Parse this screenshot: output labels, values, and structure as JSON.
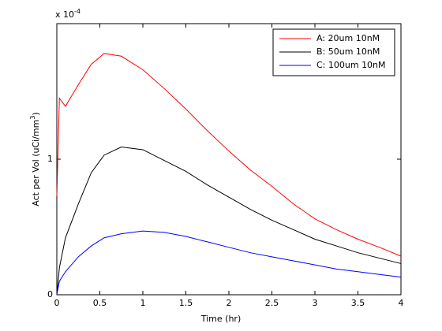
{
  "chart_data": {
    "type": "line",
    "xlabel": "Time (hr)",
    "ylabel": {
      "text": "Act per Vol (uCi/mm",
      "superscript": "3",
      "suffix": ")"
    },
    "y_multiplier": {
      "base": "x 10",
      "exponent": "-4"
    },
    "x": [
      0,
      0.03,
      0.1,
      0.25,
      0.4,
      0.55,
      0.75,
      1,
      1.25,
      1.5,
      1.75,
      2,
      2.25,
      2.5,
      2.75,
      3,
      3.25,
      3.5,
      3.75,
      4
    ],
    "series": [
      {
        "name": "A: 20um 10nM",
        "color": "#ff0000",
        "values": [
          0.73,
          1.45,
          1.39,
          1.55,
          1.7,
          1.78,
          1.76,
          1.66,
          1.52,
          1.37,
          1.21,
          1.06,
          0.92,
          0.8,
          0.67,
          0.56,
          0.48,
          0.41,
          0.35,
          0.285
        ]
      },
      {
        "name": "B: 50um 10nM",
        "color": "#000000",
        "values": [
          0,
          0.2,
          0.42,
          0.67,
          0.9,
          1.03,
          1.09,
          1.07,
          0.99,
          0.91,
          0.81,
          0.72,
          0.63,
          0.55,
          0.48,
          0.41,
          0.36,
          0.31,
          0.27,
          0.23
        ]
      },
      {
        "name": "C: 100um 10nM",
        "color": "#0000ff",
        "values": [
          0,
          0.1,
          0.17,
          0.28,
          0.36,
          0.42,
          0.45,
          0.47,
          0.46,
          0.43,
          0.39,
          0.35,
          0.31,
          0.28,
          0.25,
          0.22,
          0.19,
          0.17,
          0.15,
          0.13
        ]
      }
    ],
    "xlim": [
      0,
      4
    ],
    "xticks": [
      0,
      0.5,
      1,
      1.5,
      2,
      2.5,
      3,
      3.5,
      4
    ],
    "ylim": [
      0,
      2
    ],
    "yticks": [
      0,
      1
    ],
    "legend": "northeast",
    "grid": false
  }
}
